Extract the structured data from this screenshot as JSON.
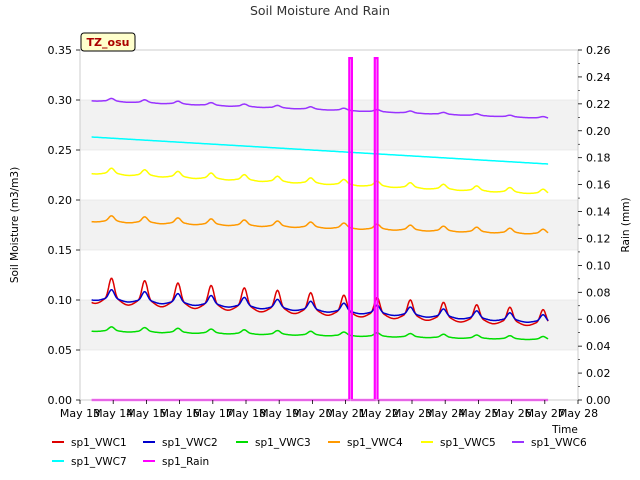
{
  "chart_data": {
    "type": "line",
    "title": "Soil Moisture And Rain",
    "site_label": "TZ_osu",
    "xlabel": "Time",
    "ylabel_left": "Soil Moisture (m3/m3)",
    "ylabel_right": "Rain (mm)",
    "x_range": [
      13,
      28
    ],
    "x_tick_values": [
      13,
      14,
      15,
      16,
      17,
      18,
      19,
      20,
      21,
      22,
      23,
      24,
      25,
      26,
      27,
      28
    ],
    "x_tick_labels": [
      "May 13",
      "May 14",
      "May 15",
      "May 16",
      "May 17",
      "May 18",
      "May 19",
      "May 20",
      "May 21",
      "May 22",
      "May 23",
      "May 24",
      "May 25",
      "May 26",
      "May 27",
      "May 28"
    ],
    "ylim_left": [
      0.0,
      0.35
    ],
    "y_ticks_left": [
      "0.00",
      "0.05",
      "0.10",
      "0.15",
      "0.20",
      "0.25",
      "0.30",
      "0.35"
    ],
    "ylim_right": [
      0.0,
      0.26
    ],
    "y_ticks_right": [
      "0.00",
      "0.02",
      "0.04",
      "0.06",
      "0.08",
      "0.10",
      "0.12",
      "0.14",
      "0.16",
      "0.18",
      "0.20",
      "0.22",
      "0.24",
      "0.26"
    ],
    "grid": "horizontal alternating bands",
    "legend_position": "bottom",
    "series": [
      {
        "name": "sp1_VWC1",
        "color": "#dd0000",
        "axis": "left",
        "start": 0.104,
        "end": 0.078,
        "amplitude": 0.016,
        "amp_end": 0.01
      },
      {
        "name": "sp1_VWC2",
        "color": "#0000cc",
        "axis": "left",
        "start": 0.103,
        "end": 0.079,
        "amplitude": 0.007,
        "amp_end": 0.005
      },
      {
        "name": "sp1_VWC3",
        "color": "#00dd00",
        "axis": "left",
        "start": 0.07,
        "end": 0.061,
        "amplitude": 0.003,
        "amp_end": 0.002
      },
      {
        "name": "sp1_VWC4",
        "color": "#ff9900",
        "axis": "left",
        "start": 0.18,
        "end": 0.167,
        "amplitude": 0.004,
        "amp_end": 0.003
      },
      {
        "name": "sp1_VWC5",
        "color": "#ffff00",
        "axis": "left",
        "start": 0.228,
        "end": 0.207,
        "amplitude": 0.004,
        "amp_end": 0.003
      },
      {
        "name": "sp1_VWC6",
        "color": "#9933ff",
        "axis": "left",
        "start": 0.3,
        "end": 0.282,
        "amplitude": 0.002,
        "amp_end": 0.001
      },
      {
        "name": "sp1_VWC7",
        "color": "#00ffff",
        "axis": "left",
        "start": 0.263,
        "end": 0.236,
        "amplitude": 0.0,
        "amp_end": 0.0
      },
      {
        "name": "sp1_Rain",
        "color": "#ff00ff",
        "axis": "right",
        "baseline": 0.0,
        "events": [
          {
            "x": 21.15,
            "value": 0.254
          },
          {
            "x": 21.92,
            "value": 0.254
          }
        ]
      }
    ]
  }
}
